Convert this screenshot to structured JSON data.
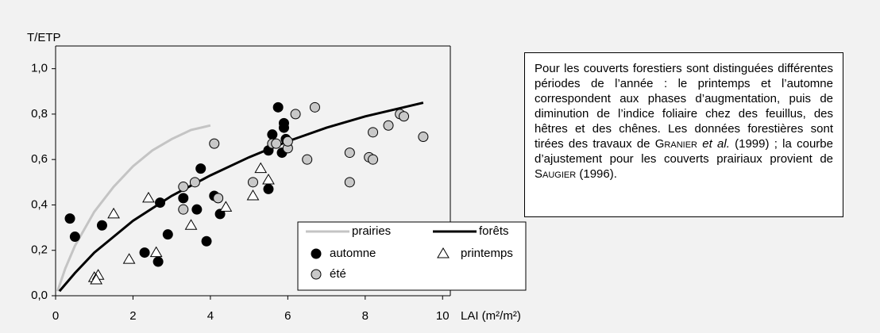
{
  "chart_data": {
    "type": "scatter",
    "ylabel": "T/ETP",
    "xlabel": "LAI (m²/m²)",
    "xlim": [
      0,
      10.2
    ],
    "ylim": [
      0,
      1.1
    ],
    "xticks": [
      0,
      2,
      4,
      6,
      8,
      10
    ],
    "yticks": [
      {
        "value": 0,
        "label": "0,0"
      },
      {
        "value": 0.2,
        "label": "0,2"
      },
      {
        "value": 0.4,
        "label": "0,4"
      },
      {
        "value": 0.6,
        "label": "0,6"
      },
      {
        "value": 0.8,
        "label": "0,8"
      },
      {
        "value": 1.0,
        "label": "1,0"
      }
    ],
    "legend": "bottom-right",
    "series": [
      {
        "name": "prairies",
        "kind": "line",
        "color": "#c4c4c4",
        "x": [
          0.05,
          0.25,
          0.5,
          1,
          1.5,
          2,
          2.5,
          3,
          3.5,
          4
        ],
        "values": [
          0.02,
          0.12,
          0.22,
          0.37,
          0.48,
          0.57,
          0.64,
          0.69,
          0.73,
          0.75
        ]
      },
      {
        "name": "forêts",
        "kind": "line",
        "color": "#000000",
        "x": [
          0.1,
          0.5,
          1,
          2,
          3,
          4,
          5,
          6,
          7,
          8,
          9,
          9.5
        ],
        "values": [
          0.02,
          0.1,
          0.19,
          0.33,
          0.44,
          0.53,
          0.61,
          0.68,
          0.74,
          0.79,
          0.83,
          0.85
        ]
      },
      {
        "name": "automne",
        "kind": "points",
        "marker": "circle",
        "color": "#000000",
        "x": [
          0.37,
          0.5,
          1.2,
          2.3,
          2.65,
          2.7,
          2.9,
          3.3,
          3.65,
          3.75,
          3.9,
          4.1,
          4.25,
          5.5,
          5.5,
          5.6,
          5.75,
          5.85,
          5.9,
          5.9,
          5.95
        ],
        "values": [
          0.34,
          0.26,
          0.31,
          0.19,
          0.15,
          0.41,
          0.27,
          0.43,
          0.38,
          0.56,
          0.24,
          0.44,
          0.36,
          0.47,
          0.64,
          0.71,
          0.83,
          0.63,
          0.76,
          0.74,
          0.69
        ]
      },
      {
        "name": "printemps",
        "kind": "points",
        "marker": "triangle",
        "color": "#ffffff",
        "x": [
          1.0,
          1.1,
          1.05,
          1.5,
          1.9,
          2.4,
          2.6,
          3.5,
          4.4,
          5.1,
          5.3,
          5.5
        ],
        "values": [
          0.08,
          0.09,
          0.07,
          0.36,
          0.16,
          0.43,
          0.19,
          0.31,
          0.39,
          0.44,
          0.56,
          0.51
        ]
      },
      {
        "name": "été",
        "kind": "points",
        "marker": "circle",
        "color": "#c8c8c8",
        "x": [
          3.3,
          3.3,
          3.6,
          4.1,
          4.2,
          5.1,
          5.6,
          5.7,
          6.0,
          6.0,
          6.2,
          6.5,
          6.7,
          7.6,
          7.6,
          8.1,
          8.2,
          8.2,
          8.6,
          8.9,
          9.0,
          9.5
        ],
        "values": [
          0.48,
          0.38,
          0.5,
          0.67,
          0.43,
          0.5,
          0.67,
          0.67,
          0.65,
          0.68,
          0.8,
          0.6,
          0.83,
          0.63,
          0.5,
          0.61,
          0.6,
          0.72,
          0.75,
          0.8,
          0.79,
          0.7
        ]
      }
    ],
    "annotation": [
      {
        "text": "Pour les couverts forestiers sont distinguées différentes périodes de l’année : le printemps et l’automne correspondent aux phases d’augmentation, puis de diminution de l’indice foliaire chez des feuillus, des hêtres et des chênes. Les données forestières sont tirées des travaux de ",
        "style": "normal"
      },
      {
        "text": "Granier",
        "style": "smallcaps"
      },
      {
        "text": " ",
        "style": "normal"
      },
      {
        "text": "et al.",
        "style": "italic"
      },
      {
        "text": " (1999) ; la courbe d’ajustement pour les couverts prairiaux provient de ",
        "style": "normal"
      },
      {
        "text": "Saugier",
        "style": "smallcaps"
      },
      {
        "text": " (1996).",
        "style": "normal"
      }
    ]
  }
}
